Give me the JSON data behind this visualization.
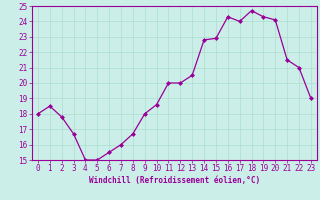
{
  "x": [
    0,
    1,
    2,
    3,
    4,
    5,
    6,
    7,
    8,
    9,
    10,
    11,
    12,
    13,
    14,
    15,
    16,
    17,
    18,
    19,
    20,
    21,
    22,
    23
  ],
  "y": [
    18,
    18.5,
    17.8,
    16.7,
    15.0,
    15.0,
    15.5,
    16.0,
    16.7,
    18.0,
    18.6,
    20.0,
    20.0,
    20.5,
    22.8,
    22.9,
    24.3,
    24.0,
    24.7,
    24.3,
    24.1,
    21.5,
    21.0,
    19.0
  ],
  "line_color": "#990099",
  "marker": "D",
  "marker_size": 2.0,
  "linewidth": 0.9,
  "xlabel": "Windchill (Refroidissement éolien,°C)",
  "xlabel_fontsize": 5.5,
  "ylim": [
    15,
    25
  ],
  "xlim": [
    -0.5,
    23.5
  ],
  "yticks": [
    15,
    16,
    17,
    18,
    19,
    20,
    21,
    22,
    23,
    24,
    25
  ],
  "xticks": [
    0,
    1,
    2,
    3,
    4,
    5,
    6,
    7,
    8,
    9,
    10,
    11,
    12,
    13,
    14,
    15,
    16,
    17,
    18,
    19,
    20,
    21,
    22,
    23
  ],
  "background_color": "#cceee8",
  "grid_color": "#aaddcc",
  "tick_color": "#990099",
  "tick_fontsize": 5.5,
  "spine_color": "#990099",
  "xlabel_bold": true
}
